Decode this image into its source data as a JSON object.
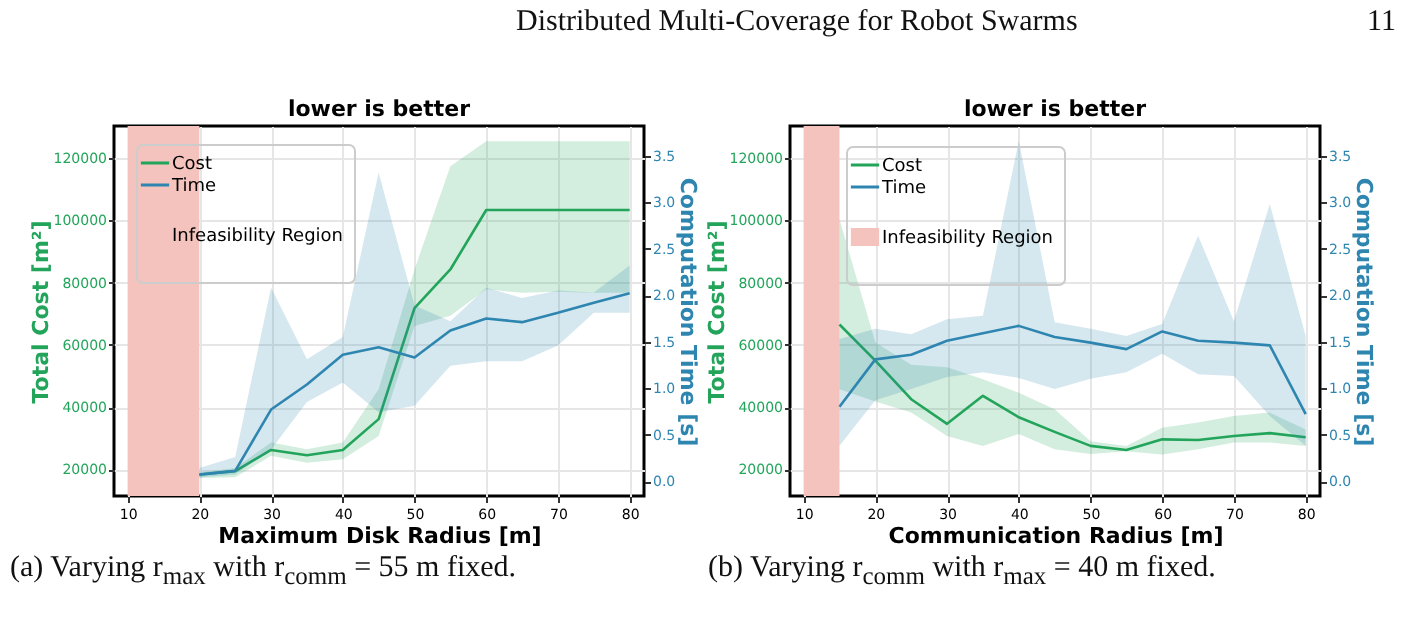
{
  "chart_data": [
    {
      "type": "line",
      "title": "lower is better",
      "xlabel": "Maximum Disk Radius [m]",
      "ylabel": "Total Cost [m²]",
      "y2label": "Computation Time [s]",
      "annotations": [
        "Distributed Multi-Coverage for Robot Swarms",
        "11",
        "(a) Varying r$_{max}$ with r$_{comm}$ = 55 m fixed."
      ],
      "x": [
        20,
        25,
        30,
        35,
        40,
        45,
        50,
        55,
        60,
        65,
        70,
        75,
        80
      ],
      "series": [
        {
          "name": "Cost",
          "color": "#22a55a",
          "values": [
            18300,
            19400,
            26200,
            24500,
            26200,
            36100,
            71800,
            84200,
            103300,
            103300,
            103300,
            103300,
            103300
          ],
          "lower": [
            17200,
            17400,
            24300,
            22100,
            23200,
            30700,
            66000,
            69300,
            77800,
            76700,
            77000,
            76700,
            76700
          ],
          "upper": [
            18900,
            20400,
            28600,
            26400,
            28600,
            45700,
            84200,
            117400,
            125400,
            125400,
            125400,
            125400,
            125400
          ]
        },
        {
          "name": "Time",
          "color": "#2e86b0",
          "axis": "y2",
          "values": [
            0.07,
            0.11,
            0.77,
            1.04,
            1.36,
            1.44,
            1.33,
            1.62,
            1.75,
            1.71,
            1.81,
            1.92,
            2.02
          ],
          "lower": [
            0.04,
            0.07,
            0.34,
            0.85,
            1.06,
            0.74,
            0.81,
            1.24,
            1.29,
            1.29,
            1.46,
            1.81,
            1.81
          ],
          "upper": [
            0.14,
            0.26,
            2.08,
            1.31,
            1.55,
            3.32,
            1.89,
            1.72,
            2.08,
            1.97,
            2.05,
            2.03,
            2.32
          ]
        }
      ],
      "bands": [
        {
          "axis": "x",
          "from": 10,
          "to": 20,
          "label": "Infeasibility Region",
          "color": "#f4c3bd"
        }
      ],
      "xlim": [
        8.1,
        82
      ],
      "xticks": [
        10,
        20,
        30,
        40,
        50,
        60,
        70,
        80
      ],
      "ylim": [
        11400,
        130300
      ],
      "yticks": [
        20000,
        40000,
        60000,
        80000,
        100000,
        120000
      ],
      "y2lim": [
        -0.16,
        3.82
      ],
      "y2ticks": [
        {
          "value": 0,
          "label": "0.0"
        },
        0.5,
        {
          "value": 1,
          "label": "1.0"
        },
        1.5,
        {
          "value": 2,
          "label": "2.0"
        },
        2.5,
        {
          "value": 3,
          "label": "3.0"
        },
        3.5
      ],
      "grid": true,
      "legend": "top left"
    },
    {
      "type": "line",
      "title": "lower is better",
      "xlabel": "Communication Radius [m]",
      "ylabel": "Total Cost [m²]",
      "y2label": "Computation Time [s]",
      "annotations": [
        "(b) Varying r$_{comm}$ with r$_{max}$ = 40 m fixed."
      ],
      "x": [
        15,
        20,
        25,
        30,
        35,
        40,
        45,
        50,
        55,
        60,
        65,
        70,
        75,
        80
      ],
      "series": [
        {
          "name": "Cost",
          "color": "#22a55a",
          "values": [
            66500,
            54900,
            42500,
            34600,
            43600,
            36700,
            32000,
            27500,
            26200,
            29600,
            29400,
            30700,
            31600,
            30300
          ],
          "lower": [
            45700,
            41800,
            38200,
            30700,
            27500,
            31300,
            26400,
            24900,
            25800,
            24700,
            26400,
            28600,
            28600,
            27500
          ],
          "upper": [
            100300,
            60700,
            53600,
            52800,
            48900,
            44600,
            39300,
            29000,
            27500,
            33300,
            35000,
            37100,
            38200,
            32800
          ]
        },
        {
          "name": "Time",
          "color": "#2e86b0",
          "axis": "y2",
          "values": [
            0.8,
            1.31,
            1.36,
            1.51,
            1.59,
            1.67,
            1.55,
            1.49,
            1.42,
            1.61,
            1.51,
            1.49,
            1.46,
            0.72
          ],
          "lower": [
            0.38,
            0.87,
            0.99,
            1.12,
            1.17,
            1.11,
            0.99,
            1.1,
            1.17,
            1.37,
            1.15,
            1.13,
            0.7,
            0.38
          ],
          "upper": [
            1.53,
            1.64,
            1.58,
            1.74,
            1.78,
            3.66,
            1.71,
            1.64,
            1.56,
            1.69,
            2.64,
            1.72,
            2.98,
            1.56
          ]
        }
      ],
      "bands": [
        {
          "axis": "x",
          "from": 10,
          "to": 15,
          "label": "Infeasibility Region",
          "color": "#f4c3bd"
        }
      ],
      "xlim": [
        8.1,
        82
      ],
      "xticks": [
        10,
        20,
        30,
        40,
        50,
        60,
        70,
        80
      ],
      "ylim": [
        11400,
        130300
      ],
      "yticks": [
        20000,
        40000,
        60000,
        80000,
        100000,
        120000
      ],
      "y2lim": [
        -0.16,
        3.82
      ],
      "y2ticks": [
        {
          "value": 0,
          "label": "0.0"
        },
        0.5,
        {
          "value": 1,
          "label": "1.0"
        },
        1.5,
        {
          "value": 2,
          "label": "2.0"
        },
        2.5,
        {
          "value": 3,
          "label": "3.0"
        },
        3.5
      ],
      "grid": true,
      "legend": "top left"
    }
  ]
}
